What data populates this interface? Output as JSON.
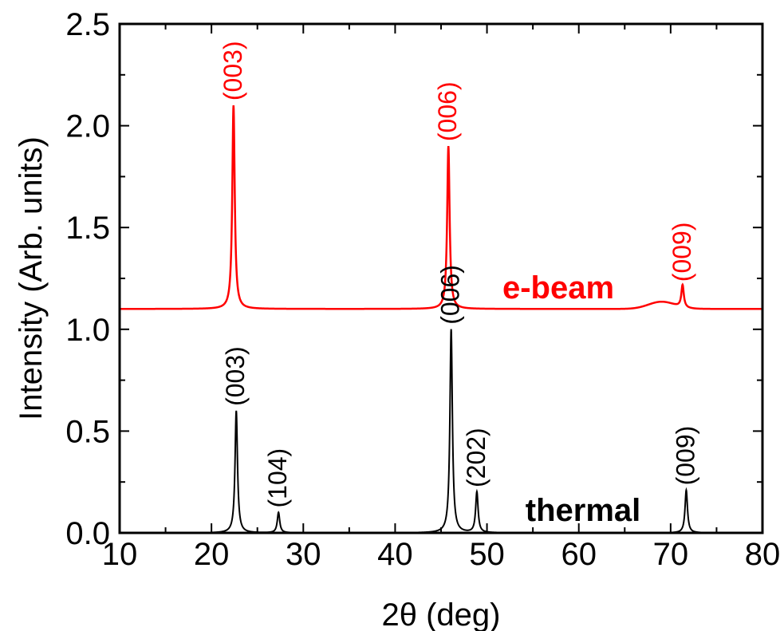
{
  "chart_data": {
    "type": "line",
    "xlabel": "2θ (deg)",
    "ylabel": "Intensity (Arb. units)",
    "xlim": [
      10,
      80
    ],
    "ylim": [
      0,
      2.5
    ],
    "x_ticks": [
      10,
      20,
      30,
      40,
      50,
      60,
      70,
      80
    ],
    "x_tick_labels": [
      "10",
      "20",
      "30",
      "40",
      "50",
      "60",
      "70",
      "80"
    ],
    "y_ticks": [
      0.0,
      0.5,
      1.0,
      1.5,
      2.0,
      2.5
    ],
    "y_tick_labels": [
      "0.0",
      "0.5",
      "1.0",
      "1.5",
      "2.0",
      "2.5"
    ],
    "grid": false,
    "series": [
      {
        "name": "e-beam",
        "color": "#ff0000",
        "baseline": 1.1,
        "peaks": [
          {
            "x": 22.4,
            "y": 2.1,
            "label": "(003)"
          },
          {
            "x": 45.8,
            "y": 1.9,
            "label": "(006)"
          },
          {
            "x": 71.3,
            "y": 1.21,
            "label": "(009)"
          }
        ],
        "broad_hump": {
          "x": 69.0,
          "y": 1.135
        }
      },
      {
        "name": "thermal",
        "color": "#000000",
        "baseline": 0.0,
        "peaks": [
          {
            "x": 22.7,
            "y": 0.6,
            "label": "(003)"
          },
          {
            "x": 27.3,
            "y": 0.1,
            "label": "(104)"
          },
          {
            "x": 46.1,
            "y": 1.0,
            "label": "(006)"
          },
          {
            "x": 48.9,
            "y": 0.2,
            "label": "(202)"
          },
          {
            "x": 71.7,
            "y": 0.21,
            "label": "(009)"
          }
        ]
      }
    ]
  }
}
